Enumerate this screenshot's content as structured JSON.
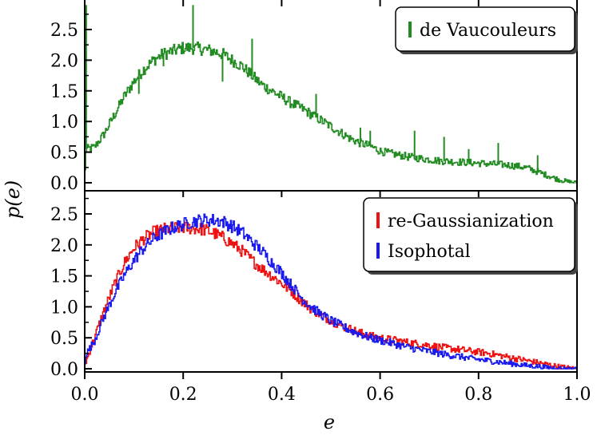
{
  "colors": {
    "green": "#228b22",
    "red": "#ee1111",
    "blue": "#1a1aee",
    "axis": "#000000"
  },
  "chart_data": {
    "type": "line",
    "layout": "two vertically stacked panels sharing the x axis",
    "xlabel": "e",
    "ylabel": "p(e)",
    "xlim": [
      0,
      1
    ],
    "x_ticks": [
      0.0,
      0.2,
      0.4,
      0.6,
      0.8,
      1.0
    ],
    "x_tick_labels": [
      "0.0",
      "0.2",
      "0.4",
      "0.6",
      "0.8",
      "1.0"
    ],
    "panels": [
      {
        "name": "top",
        "ylim": [
          0,
          2.9
        ],
        "y_ticks": [
          0.0,
          0.5,
          1.0,
          1.5,
          2.0,
          2.5
        ],
        "y_tick_labels": [
          "0.0",
          "0.5",
          "1.0",
          "1.5",
          "2.0",
          "2.5"
        ],
        "legend_position": "top-right",
        "series": [
          {
            "name": "de Vaucouleurs",
            "color": "#228b22",
            "points": [
              [
                0,
                0.03
              ],
              [
                0.003,
                0.55
              ],
              [
                0.02,
                0.58
              ],
              [
                0.04,
                0.8
              ],
              [
                0.06,
                1.1
              ],
              [
                0.08,
                1.4
              ],
              [
                0.1,
                1.65
              ],
              [
                0.12,
                1.85
              ],
              [
                0.14,
                2.0
              ],
              [
                0.16,
                2.1
              ],
              [
                0.18,
                2.15
              ],
              [
                0.2,
                2.2
              ],
              [
                0.22,
                2.2
              ],
              [
                0.24,
                2.18
              ],
              [
                0.26,
                2.15
              ],
              [
                0.28,
                2.1
              ],
              [
                0.3,
                2.0
              ],
              [
                0.32,
                1.9
              ],
              [
                0.34,
                1.75
              ],
              [
                0.36,
                1.6
              ],
              [
                0.38,
                1.5
              ],
              [
                0.4,
                1.4
              ],
              [
                0.42,
                1.3
              ],
              [
                0.44,
                1.22
              ],
              [
                0.46,
                1.12
              ],
              [
                0.48,
                1.02
              ],
              [
                0.5,
                0.92
              ],
              [
                0.52,
                0.82
              ],
              [
                0.54,
                0.72
              ],
              [
                0.56,
                0.65
              ],
              [
                0.58,
                0.6
              ],
              [
                0.6,
                0.52
              ],
              [
                0.62,
                0.48
              ],
              [
                0.64,
                0.45
              ],
              [
                0.66,
                0.42
              ],
              [
                0.68,
                0.4
              ],
              [
                0.7,
                0.38
              ],
              [
                0.72,
                0.36
              ],
              [
                0.74,
                0.35
              ],
              [
                0.76,
                0.34
              ],
              [
                0.78,
                0.33
              ],
              [
                0.8,
                0.32
              ],
              [
                0.82,
                0.31
              ],
              [
                0.84,
                0.3
              ],
              [
                0.86,
                0.29
              ],
              [
                0.88,
                0.27
              ],
              [
                0.9,
                0.24
              ],
              [
                0.92,
                0.18
              ],
              [
                0.94,
                0.12
              ],
              [
                0.96,
                0.06
              ],
              [
                0.98,
                0.02
              ],
              [
                1.0,
                0.0
              ]
            ],
            "spikes": [
              [
                0.003,
                2.9
              ],
              [
                0.22,
                2.9
              ],
              [
                0.16,
                1.9
              ],
              [
                0.34,
                2.35
              ],
              [
                0.11,
                1.45
              ],
              [
                0.28,
                1.65
              ],
              [
                0.35,
                1.65
              ],
              [
                0.47,
                1.45
              ],
              [
                0.56,
                0.9
              ],
              [
                0.58,
                0.85
              ],
              [
                0.67,
                0.85
              ],
              [
                0.73,
                0.75
              ],
              [
                0.78,
                0.55
              ],
              [
                0.84,
                0.65
              ],
              [
                0.92,
                0.45
              ]
            ]
          }
        ]
      },
      {
        "name": "bottom",
        "ylim": [
          0,
          2.9
        ],
        "y_ticks": [
          0.0,
          0.5,
          1.0,
          1.5,
          2.0,
          2.5
        ],
        "y_tick_labels": [
          "0.0",
          "0.5",
          "1.0",
          "1.5",
          "2.0",
          "2.5"
        ],
        "legend_position": "top-right",
        "series": [
          {
            "name": "re-Gaussianization",
            "color": "#ee1111",
            "points": [
              [
                0,
                0.05
              ],
              [
                0.02,
                0.5
              ],
              [
                0.04,
                0.95
              ],
              [
                0.06,
                1.35
              ],
              [
                0.08,
                1.7
              ],
              [
                0.1,
                1.95
              ],
              [
                0.12,
                2.1
              ],
              [
                0.14,
                2.2
              ],
              [
                0.16,
                2.25
              ],
              [
                0.18,
                2.27
              ],
              [
                0.2,
                2.28
              ],
              [
                0.22,
                2.27
              ],
              [
                0.24,
                2.25
              ],
              [
                0.26,
                2.2
              ],
              [
                0.28,
                2.12
              ],
              [
                0.3,
                2.02
              ],
              [
                0.32,
                1.9
              ],
              [
                0.34,
                1.75
              ],
              [
                0.36,
                1.62
              ],
              [
                0.38,
                1.5
              ],
              [
                0.4,
                1.38
              ],
              [
                0.42,
                1.25
              ],
              [
                0.44,
                1.1
              ],
              [
                0.46,
                0.97
              ],
              [
                0.48,
                0.87
              ],
              [
                0.5,
                0.78
              ],
              [
                0.52,
                0.7
              ],
              [
                0.54,
                0.64
              ],
              [
                0.56,
                0.58
              ],
              [
                0.58,
                0.53
              ],
              [
                0.6,
                0.5
              ],
              [
                0.62,
                0.47
              ],
              [
                0.64,
                0.45
              ],
              [
                0.66,
                0.42
              ],
              [
                0.68,
                0.4
              ],
              [
                0.7,
                0.38
              ],
              [
                0.72,
                0.35
              ],
              [
                0.74,
                0.33
              ],
              [
                0.76,
                0.31
              ],
              [
                0.78,
                0.29
              ],
              [
                0.8,
                0.27
              ],
              [
                0.82,
                0.25
              ],
              [
                0.84,
                0.22
              ],
              [
                0.86,
                0.19
              ],
              [
                0.88,
                0.16
              ],
              [
                0.9,
                0.13
              ],
              [
                0.92,
                0.1
              ],
              [
                0.94,
                0.07
              ],
              [
                0.96,
                0.04
              ],
              [
                0.98,
                0.02
              ],
              [
                1.0,
                0.0
              ]
            ]
          },
          {
            "name": "Isophotal",
            "color": "#1a1aee",
            "points": [
              [
                0,
                0.05
              ],
              [
                0.002,
                0.22
              ],
              [
                0.02,
                0.45
              ],
              [
                0.04,
                0.85
              ],
              [
                0.06,
                1.2
              ],
              [
                0.08,
                1.5
              ],
              [
                0.1,
                1.75
              ],
              [
                0.12,
                1.95
              ],
              [
                0.14,
                2.1
              ],
              [
                0.16,
                2.2
              ],
              [
                0.18,
                2.28
              ],
              [
                0.2,
                2.33
              ],
              [
                0.22,
                2.38
              ],
              [
                0.24,
                2.4
              ],
              [
                0.26,
                2.4
              ],
              [
                0.28,
                2.38
              ],
              [
                0.3,
                2.3
              ],
              [
                0.32,
                2.2
              ],
              [
                0.34,
                2.05
              ],
              [
                0.36,
                1.9
              ],
              [
                0.38,
                1.72
              ],
              [
                0.4,
                1.55
              ],
              [
                0.42,
                1.35
              ],
              [
                0.44,
                1.15
              ],
              [
                0.46,
                1.0
              ],
              [
                0.48,
                0.88
              ],
              [
                0.5,
                0.78
              ],
              [
                0.52,
                0.7
              ],
              [
                0.54,
                0.62
              ],
              [
                0.56,
                0.56
              ],
              [
                0.58,
                0.5
              ],
              [
                0.6,
                0.46
              ],
              [
                0.62,
                0.42
              ],
              [
                0.64,
                0.38
              ],
              [
                0.66,
                0.34
              ],
              [
                0.68,
                0.31
              ],
              [
                0.7,
                0.28
              ],
              [
                0.72,
                0.25
              ],
              [
                0.74,
                0.22
              ],
              [
                0.76,
                0.2
              ],
              [
                0.78,
                0.17
              ],
              [
                0.8,
                0.15
              ],
              [
                0.82,
                0.13
              ],
              [
                0.84,
                0.11
              ],
              [
                0.86,
                0.09
              ],
              [
                0.88,
                0.07
              ],
              [
                0.9,
                0.05
              ],
              [
                0.92,
                0.04
              ],
              [
                0.94,
                0.02
              ],
              [
                0.96,
                0.01
              ],
              [
                0.98,
                0.0
              ],
              [
                1.0,
                0.0
              ]
            ]
          }
        ]
      }
    ]
  }
}
